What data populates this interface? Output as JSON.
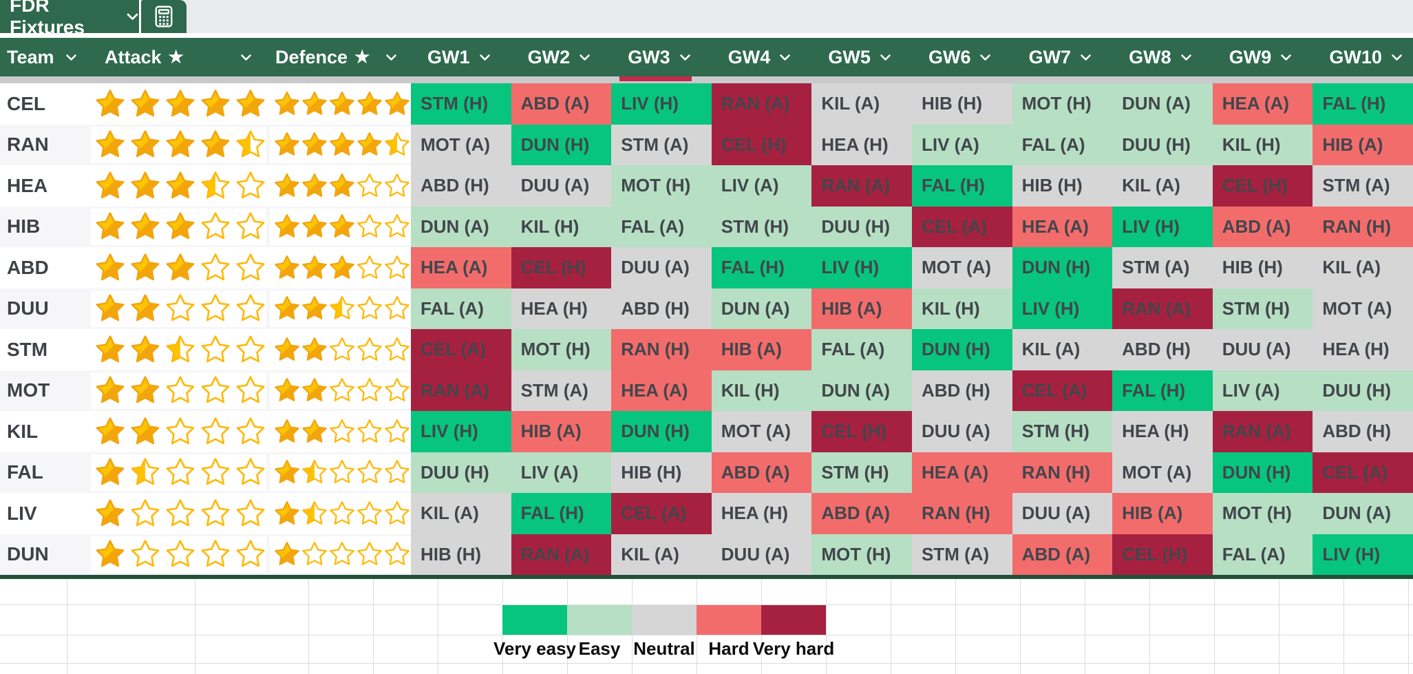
{
  "tabbar": {
    "active_tab_label": "FDR Fixtures",
    "calculator_tab_icon": "calculator-icon"
  },
  "header": {
    "team_label": "Team",
    "attack_label": "Attack",
    "defence_label": "Defence",
    "star_glyph": "★",
    "dropdown_icon": "chevron-down-icon",
    "gw_labels": [
      "GW1",
      "GW2",
      "GW3",
      "GW4",
      "GW5",
      "GW6",
      "GW7",
      "GW8",
      "GW9",
      "GW10"
    ]
  },
  "colors": {
    "very_easy": "#07C57E",
    "easy": "#B6DFC4",
    "neutral": "#D6D6D7",
    "hard": "#F26C6C",
    "very_hard": "#A62140",
    "header_green": "#2F6A4F",
    "tab_green": "#2E684D",
    "tabbar_rest": "#E8EAED",
    "divider_grey": "#C9CACC",
    "marker_red": "#C22B49",
    "row_alt": "#F6F6F8",
    "grid_line": "#DBDCDE",
    "table_border_green": "#22503B",
    "text_dark": "#42464B",
    "team_text": "#3E4247",
    "star_gold": "#FFC400",
    "star_gold_dark": "#F2A50C"
  },
  "teams": [
    {
      "code": "CEL",
      "attack": 5,
      "defence": 5,
      "fixtures": [
        {
          "label": "STM (H)",
          "difficulty": "very_easy"
        },
        {
          "label": "ABD (A)",
          "difficulty": "hard"
        },
        {
          "label": "LIV (H)",
          "difficulty": "very_easy"
        },
        {
          "label": "RAN (A)",
          "difficulty": "very_hard"
        },
        {
          "label": "KIL (A)",
          "difficulty": "neutral"
        },
        {
          "label": "HIB (H)",
          "difficulty": "neutral"
        },
        {
          "label": "MOT (H)",
          "difficulty": "easy"
        },
        {
          "label": "DUN (A)",
          "difficulty": "easy"
        },
        {
          "label": "HEA (A)",
          "difficulty": "hard"
        },
        {
          "label": "FAL (H)",
          "difficulty": "very_easy"
        }
      ]
    },
    {
      "code": "RAN",
      "attack": 4.5,
      "defence": 4.5,
      "fixtures": [
        {
          "label": "MOT (A)",
          "difficulty": "neutral"
        },
        {
          "label": "DUN (H)",
          "difficulty": "very_easy"
        },
        {
          "label": "STM (A)",
          "difficulty": "neutral"
        },
        {
          "label": "CEL (H)",
          "difficulty": "very_hard"
        },
        {
          "label": "HEA (H)",
          "difficulty": "neutral"
        },
        {
          "label": "LIV (A)",
          "difficulty": "easy"
        },
        {
          "label": "FAL (A)",
          "difficulty": "easy"
        },
        {
          "label": "DUU (H)",
          "difficulty": "easy"
        },
        {
          "label": "KIL (H)",
          "difficulty": "easy"
        },
        {
          "label": "HIB (A)",
          "difficulty": "hard"
        }
      ]
    },
    {
      "code": "HEA",
      "attack": 3.5,
      "defence": 3,
      "fixtures": [
        {
          "label": "ABD (H)",
          "difficulty": "neutral"
        },
        {
          "label": "DUU (A)",
          "difficulty": "neutral"
        },
        {
          "label": "MOT (H)",
          "difficulty": "easy"
        },
        {
          "label": "LIV (A)",
          "difficulty": "easy"
        },
        {
          "label": "RAN (A)",
          "difficulty": "very_hard"
        },
        {
          "label": "FAL (H)",
          "difficulty": "very_easy"
        },
        {
          "label": "HIB (H)",
          "difficulty": "neutral"
        },
        {
          "label": "KIL (A)",
          "difficulty": "neutral"
        },
        {
          "label": "CEL (H)",
          "difficulty": "very_hard"
        },
        {
          "label": "STM (A)",
          "difficulty": "neutral"
        }
      ]
    },
    {
      "code": "HIB",
      "attack": 3,
      "defence": 3,
      "fixtures": [
        {
          "label": "DUN (A)",
          "difficulty": "easy"
        },
        {
          "label": "KIL (H)",
          "difficulty": "easy"
        },
        {
          "label": "FAL (A)",
          "difficulty": "easy"
        },
        {
          "label": "STM (H)",
          "difficulty": "easy"
        },
        {
          "label": "DUU (H)",
          "difficulty": "easy"
        },
        {
          "label": "CEL (A)",
          "difficulty": "very_hard"
        },
        {
          "label": "HEA (A)",
          "difficulty": "hard"
        },
        {
          "label": "LIV (H)",
          "difficulty": "very_easy"
        },
        {
          "label": "ABD (A)",
          "difficulty": "hard"
        },
        {
          "label": "RAN (H)",
          "difficulty": "hard"
        }
      ]
    },
    {
      "code": "ABD",
      "attack": 3,
      "defence": 3,
      "fixtures": [
        {
          "label": "HEA (A)",
          "difficulty": "hard"
        },
        {
          "label": "CEL (H)",
          "difficulty": "very_hard"
        },
        {
          "label": "DUU (A)",
          "difficulty": "neutral"
        },
        {
          "label": "FAL (H)",
          "difficulty": "very_easy"
        },
        {
          "label": "LIV (H)",
          "difficulty": "very_easy"
        },
        {
          "label": "MOT (A)",
          "difficulty": "neutral"
        },
        {
          "label": "DUN (H)",
          "difficulty": "very_easy"
        },
        {
          "label": "STM (A)",
          "difficulty": "neutral"
        },
        {
          "label": "HIB (H)",
          "difficulty": "neutral"
        },
        {
          "label": "KIL (A)",
          "difficulty": "neutral"
        }
      ]
    },
    {
      "code": "DUU",
      "attack": 2,
      "defence": 2.5,
      "fixtures": [
        {
          "label": "FAL (A)",
          "difficulty": "easy"
        },
        {
          "label": "HEA (H)",
          "difficulty": "neutral"
        },
        {
          "label": "ABD (H)",
          "difficulty": "neutral"
        },
        {
          "label": "DUN (A)",
          "difficulty": "easy"
        },
        {
          "label": "HIB (A)",
          "difficulty": "hard"
        },
        {
          "label": "KIL (H)",
          "difficulty": "easy"
        },
        {
          "label": "LIV (H)",
          "difficulty": "very_easy"
        },
        {
          "label": "RAN (A)",
          "difficulty": "very_hard"
        },
        {
          "label": "STM (H)",
          "difficulty": "easy"
        },
        {
          "label": "MOT (A)",
          "difficulty": "neutral"
        }
      ]
    },
    {
      "code": "STM",
      "attack": 2.5,
      "defence": 2,
      "fixtures": [
        {
          "label": "CEL (A)",
          "difficulty": "very_hard"
        },
        {
          "label": "MOT (H)",
          "difficulty": "easy"
        },
        {
          "label": "RAN (H)",
          "difficulty": "hard"
        },
        {
          "label": "HIB (A)",
          "difficulty": "hard"
        },
        {
          "label": "FAL (A)",
          "difficulty": "easy"
        },
        {
          "label": "DUN (H)",
          "difficulty": "very_easy"
        },
        {
          "label": "KIL (A)",
          "difficulty": "neutral"
        },
        {
          "label": "ABD (H)",
          "difficulty": "neutral"
        },
        {
          "label": "DUU (A)",
          "difficulty": "neutral"
        },
        {
          "label": "HEA (H)",
          "difficulty": "neutral"
        }
      ]
    },
    {
      "code": "MOT",
      "attack": 2,
      "defence": 2,
      "fixtures": [
        {
          "label": "RAN (A)",
          "difficulty": "very_hard"
        },
        {
          "label": "STM (A)",
          "difficulty": "neutral"
        },
        {
          "label": "HEA (A)",
          "difficulty": "hard"
        },
        {
          "label": "KIL (H)",
          "difficulty": "easy"
        },
        {
          "label": "DUN (A)",
          "difficulty": "easy"
        },
        {
          "label": "ABD (H)",
          "difficulty": "neutral"
        },
        {
          "label": "CEL (A)",
          "difficulty": "very_hard"
        },
        {
          "label": "FAL (H)",
          "difficulty": "very_easy"
        },
        {
          "label": "LIV (A)",
          "difficulty": "easy"
        },
        {
          "label": "DUU (H)",
          "difficulty": "easy"
        }
      ]
    },
    {
      "code": "KIL",
      "attack": 2,
      "defence": 2,
      "fixtures": [
        {
          "label": "LIV (H)",
          "difficulty": "very_easy"
        },
        {
          "label": "HIB (A)",
          "difficulty": "hard"
        },
        {
          "label": "DUN (H)",
          "difficulty": "very_easy"
        },
        {
          "label": "MOT (A)",
          "difficulty": "neutral"
        },
        {
          "label": "CEL (H)",
          "difficulty": "very_hard"
        },
        {
          "label": "DUU (A)",
          "difficulty": "neutral"
        },
        {
          "label": "STM (H)",
          "difficulty": "easy"
        },
        {
          "label": "HEA (H)",
          "difficulty": "neutral"
        },
        {
          "label": "RAN (A)",
          "difficulty": "very_hard"
        },
        {
          "label": "ABD (H)",
          "difficulty": "neutral"
        }
      ]
    },
    {
      "code": "FAL",
      "attack": 1.5,
      "defence": 1.5,
      "fixtures": [
        {
          "label": "DUU (H)",
          "difficulty": "easy"
        },
        {
          "label": "LIV (A)",
          "difficulty": "easy"
        },
        {
          "label": "HIB (H)",
          "difficulty": "neutral"
        },
        {
          "label": "ABD (A)",
          "difficulty": "hard"
        },
        {
          "label": "STM (H)",
          "difficulty": "easy"
        },
        {
          "label": "HEA (A)",
          "difficulty": "hard"
        },
        {
          "label": "RAN (H)",
          "difficulty": "hard"
        },
        {
          "label": "MOT (A)",
          "difficulty": "neutral"
        },
        {
          "label": "DUN (H)",
          "difficulty": "very_easy"
        },
        {
          "label": "CEL (A)",
          "difficulty": "very_hard"
        }
      ]
    },
    {
      "code": "LIV",
      "attack": 1,
      "defence": 1.5,
      "fixtures": [
        {
          "label": "KIL (A)",
          "difficulty": "neutral"
        },
        {
          "label": "FAL (H)",
          "difficulty": "very_easy"
        },
        {
          "label": "CEL (A)",
          "difficulty": "very_hard"
        },
        {
          "label": "HEA (H)",
          "difficulty": "neutral"
        },
        {
          "label": "ABD (A)",
          "difficulty": "hard"
        },
        {
          "label": "RAN (H)",
          "difficulty": "hard"
        },
        {
          "label": "DUU (A)",
          "difficulty": "neutral"
        },
        {
          "label": "HIB (A)",
          "difficulty": "hard"
        },
        {
          "label": "MOT (H)",
          "difficulty": "easy"
        },
        {
          "label": "DUN (A)",
          "difficulty": "easy"
        }
      ]
    },
    {
      "code": "DUN",
      "attack": 1,
      "defence": 1,
      "fixtures": [
        {
          "label": "HIB (H)",
          "difficulty": "neutral"
        },
        {
          "label": "RAN (A)",
          "difficulty": "very_hard"
        },
        {
          "label": "KIL (A)",
          "difficulty": "neutral"
        },
        {
          "label": "DUU (A)",
          "difficulty": "neutral"
        },
        {
          "label": "MOT (H)",
          "difficulty": "easy"
        },
        {
          "label": "STM (A)",
          "difficulty": "neutral"
        },
        {
          "label": "ABD (A)",
          "difficulty": "hard"
        },
        {
          "label": "CEL (H)",
          "difficulty": "very_hard"
        },
        {
          "label": "FAL (A)",
          "difficulty": "easy"
        },
        {
          "label": "LIV (H)",
          "difficulty": "very_easy"
        }
      ]
    }
  ],
  "legend": {
    "items": [
      {
        "label": "Very easy",
        "key": "very_easy"
      },
      {
        "label": "Easy",
        "key": "easy"
      },
      {
        "label": "Neutral",
        "key": "neutral"
      },
      {
        "label": "Hard",
        "key": "hard"
      },
      {
        "label": "Very hard",
        "key": "very_hard"
      }
    ]
  }
}
